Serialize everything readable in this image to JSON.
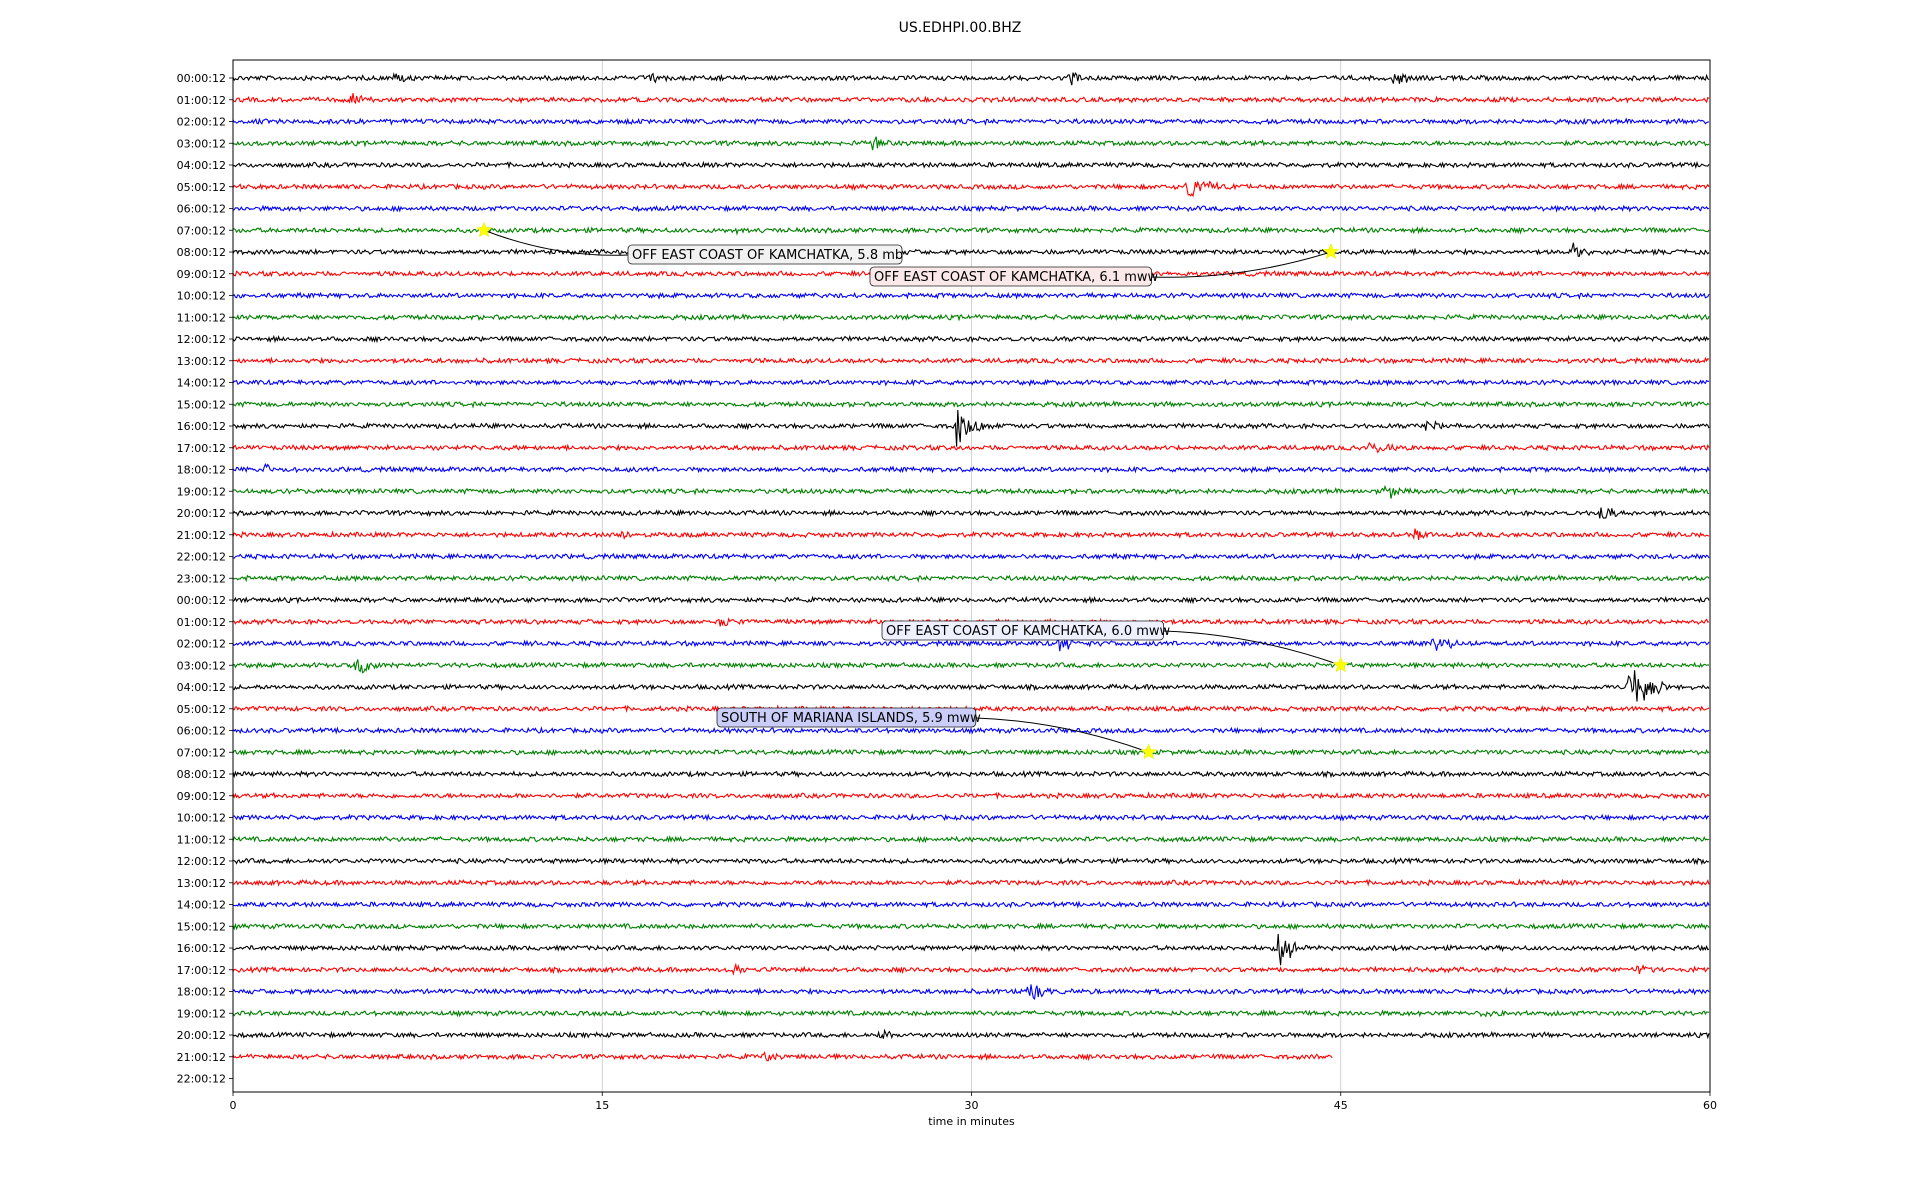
{
  "chart_data": {
    "type": "line",
    "title": "US.EDHPI.00.BHZ",
    "xlabel": "time in minutes",
    "ylabel": "",
    "xlim": [
      0,
      60
    ],
    "xticks": [
      0,
      15,
      30,
      45,
      60
    ],
    "grid": "vertical lines at 15, 30, 45",
    "trace_colors": [
      "#000000",
      "#ff0000",
      "#0000ff",
      "#008000"
    ],
    "row_labels": [
      "00:00:12",
      "01:00:12",
      "02:00:12",
      "03:00:12",
      "04:00:12",
      "05:00:12",
      "06:00:12",
      "07:00:12",
      "08:00:12",
      "09:00:12",
      "10:00:12",
      "11:00:12",
      "12:00:12",
      "13:00:12",
      "14:00:12",
      "15:00:12",
      "16:00:12",
      "17:00:12",
      "18:00:12",
      "19:00:12",
      "20:00:12",
      "21:00:12",
      "22:00:12",
      "23:00:12",
      "00:00:12",
      "01:00:12",
      "02:00:12",
      "03:00:12",
      "04:00:12",
      "05:00:12",
      "06:00:12",
      "07:00:12",
      "08:00:12",
      "09:00:12",
      "10:00:12",
      "11:00:12",
      "12:00:12",
      "13:00:12",
      "14:00:12",
      "15:00:12",
      "16:00:12",
      "17:00:12",
      "18:00:12",
      "19:00:12",
      "20:00:12",
      "21:00:12",
      "22:00:12"
    ],
    "last_trace_end_minute": 44.7,
    "events": [
      {
        "label": "OFF EAST COAST OF KAMCHATKA, 5.8 mb",
        "row": 7,
        "minute": 10.2
      },
      {
        "label": "OFF EAST COAST OF KAMCHATKA, 6.1 mww",
        "row": 8,
        "minute": 44.6
      },
      {
        "label": "OFF EAST COAST OF KAMCHATKA, 6.0 mww",
        "row": 27,
        "minute": 45.0
      },
      {
        "label": "SOUTH OF MARIANA ISLANDS, 5.9 mww",
        "row": 31,
        "minute": 37.2
      }
    ],
    "bursts": [
      {
        "row": 0,
        "minute": 6.5,
        "amp": 0.7
      },
      {
        "row": 0,
        "minute": 17.0,
        "amp": 0.6
      },
      {
        "row": 0,
        "minute": 34.0,
        "amp": 0.8
      },
      {
        "row": 0,
        "minute": 47.2,
        "amp": 0.8
      },
      {
        "row": 1,
        "minute": 4.8,
        "amp": 0.8
      },
      {
        "row": 3,
        "minute": 26.0,
        "amp": 0.6
      },
      {
        "row": 5,
        "minute": 38.8,
        "amp": 1.9
      },
      {
        "row": 7,
        "minute": 20.5,
        "amp": 0.4
      },
      {
        "row": 8,
        "minute": 54.4,
        "amp": 0.8
      },
      {
        "row": 16,
        "minute": 29.4,
        "amp": 2.0
      },
      {
        "row": 16,
        "minute": 48.5,
        "amp": 0.7
      },
      {
        "row": 17,
        "minute": 46.2,
        "amp": 0.9
      },
      {
        "row": 18,
        "minute": 1.3,
        "amp": 0.5
      },
      {
        "row": 19,
        "minute": 46.8,
        "amp": 0.9
      },
      {
        "row": 20,
        "minute": 55.5,
        "amp": 0.9
      },
      {
        "row": 21,
        "minute": 48.0,
        "amp": 0.8
      },
      {
        "row": 21,
        "minute": 15.8,
        "amp": 0.5
      },
      {
        "row": 25,
        "minute": 19.8,
        "amp": 0.6
      },
      {
        "row": 26,
        "minute": 33.6,
        "amp": 1.0
      },
      {
        "row": 26,
        "minute": 48.8,
        "amp": 1.0
      },
      {
        "row": 27,
        "minute": 5.0,
        "amp": 1.0
      },
      {
        "row": 28,
        "minute": 56.7,
        "amp": 1.5
      },
      {
        "row": 28,
        "minute": 57.0,
        "amp": 2.5
      },
      {
        "row": 40,
        "minute": 42.4,
        "amp": 1.8
      },
      {
        "row": 41,
        "minute": 20.3,
        "amp": 0.6
      },
      {
        "row": 41,
        "minute": 57.0,
        "amp": 0.7
      },
      {
        "row": 42,
        "minute": 32.3,
        "amp": 1.0
      },
      {
        "row": 43,
        "minute": 50.8,
        "amp": 0.6
      },
      {
        "row": 44,
        "minute": 26.3,
        "amp": 0.6
      },
      {
        "row": 45,
        "minute": 21.6,
        "amp": 0.5
      }
    ]
  }
}
